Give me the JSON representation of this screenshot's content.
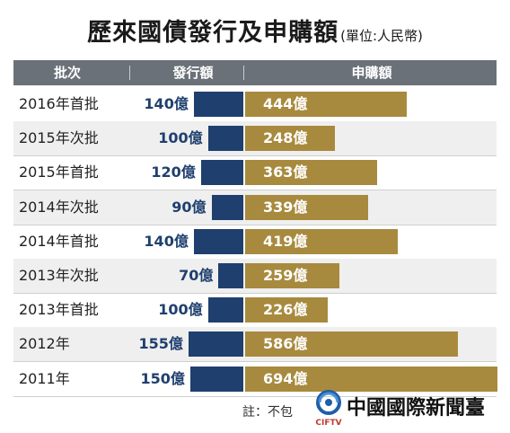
{
  "title": "歷來國債發行及申購額",
  "unit": "(單位:人民幣)",
  "header": {
    "col1": "批次",
    "col2": "發行額",
    "col3": "申購額"
  },
  "note": "註：不包",
  "logo": {
    "mark_text": "CIFTV",
    "name": "中國國際新聞臺"
  },
  "colors": {
    "issue": "#1f3f6e",
    "subscription": "#a88a3e",
    "header": "#6b7178"
  },
  "chart_data": {
    "type": "bar",
    "title": "歷來國債發行及申購額",
    "subtitle": "(單位:人民幣)",
    "categories": [
      "2016年首批",
      "2015年次批",
      "2015年首批",
      "2014年次批",
      "2014年首批",
      "2013年次批",
      "2013年首批",
      "2012年",
      "2011年"
    ],
    "series": [
      {
        "name": "發行額",
        "values": [
          140,
          100,
          120,
          90,
          140,
          70,
          100,
          155,
          150
        ],
        "labels": [
          "140億",
          "100億",
          "120億",
          "90億",
          "140億",
          "70億",
          "100億",
          "155億",
          "150億"
        ]
      },
      {
        "name": "申購額",
        "values": [
          444,
          248,
          363,
          339,
          419,
          259,
          226,
          586,
          694
        ],
        "labels": [
          "444億",
          "248億",
          "363億",
          "339億",
          "419億",
          "259億",
          "226億",
          "586億",
          "694億"
        ]
      }
    ]
  }
}
